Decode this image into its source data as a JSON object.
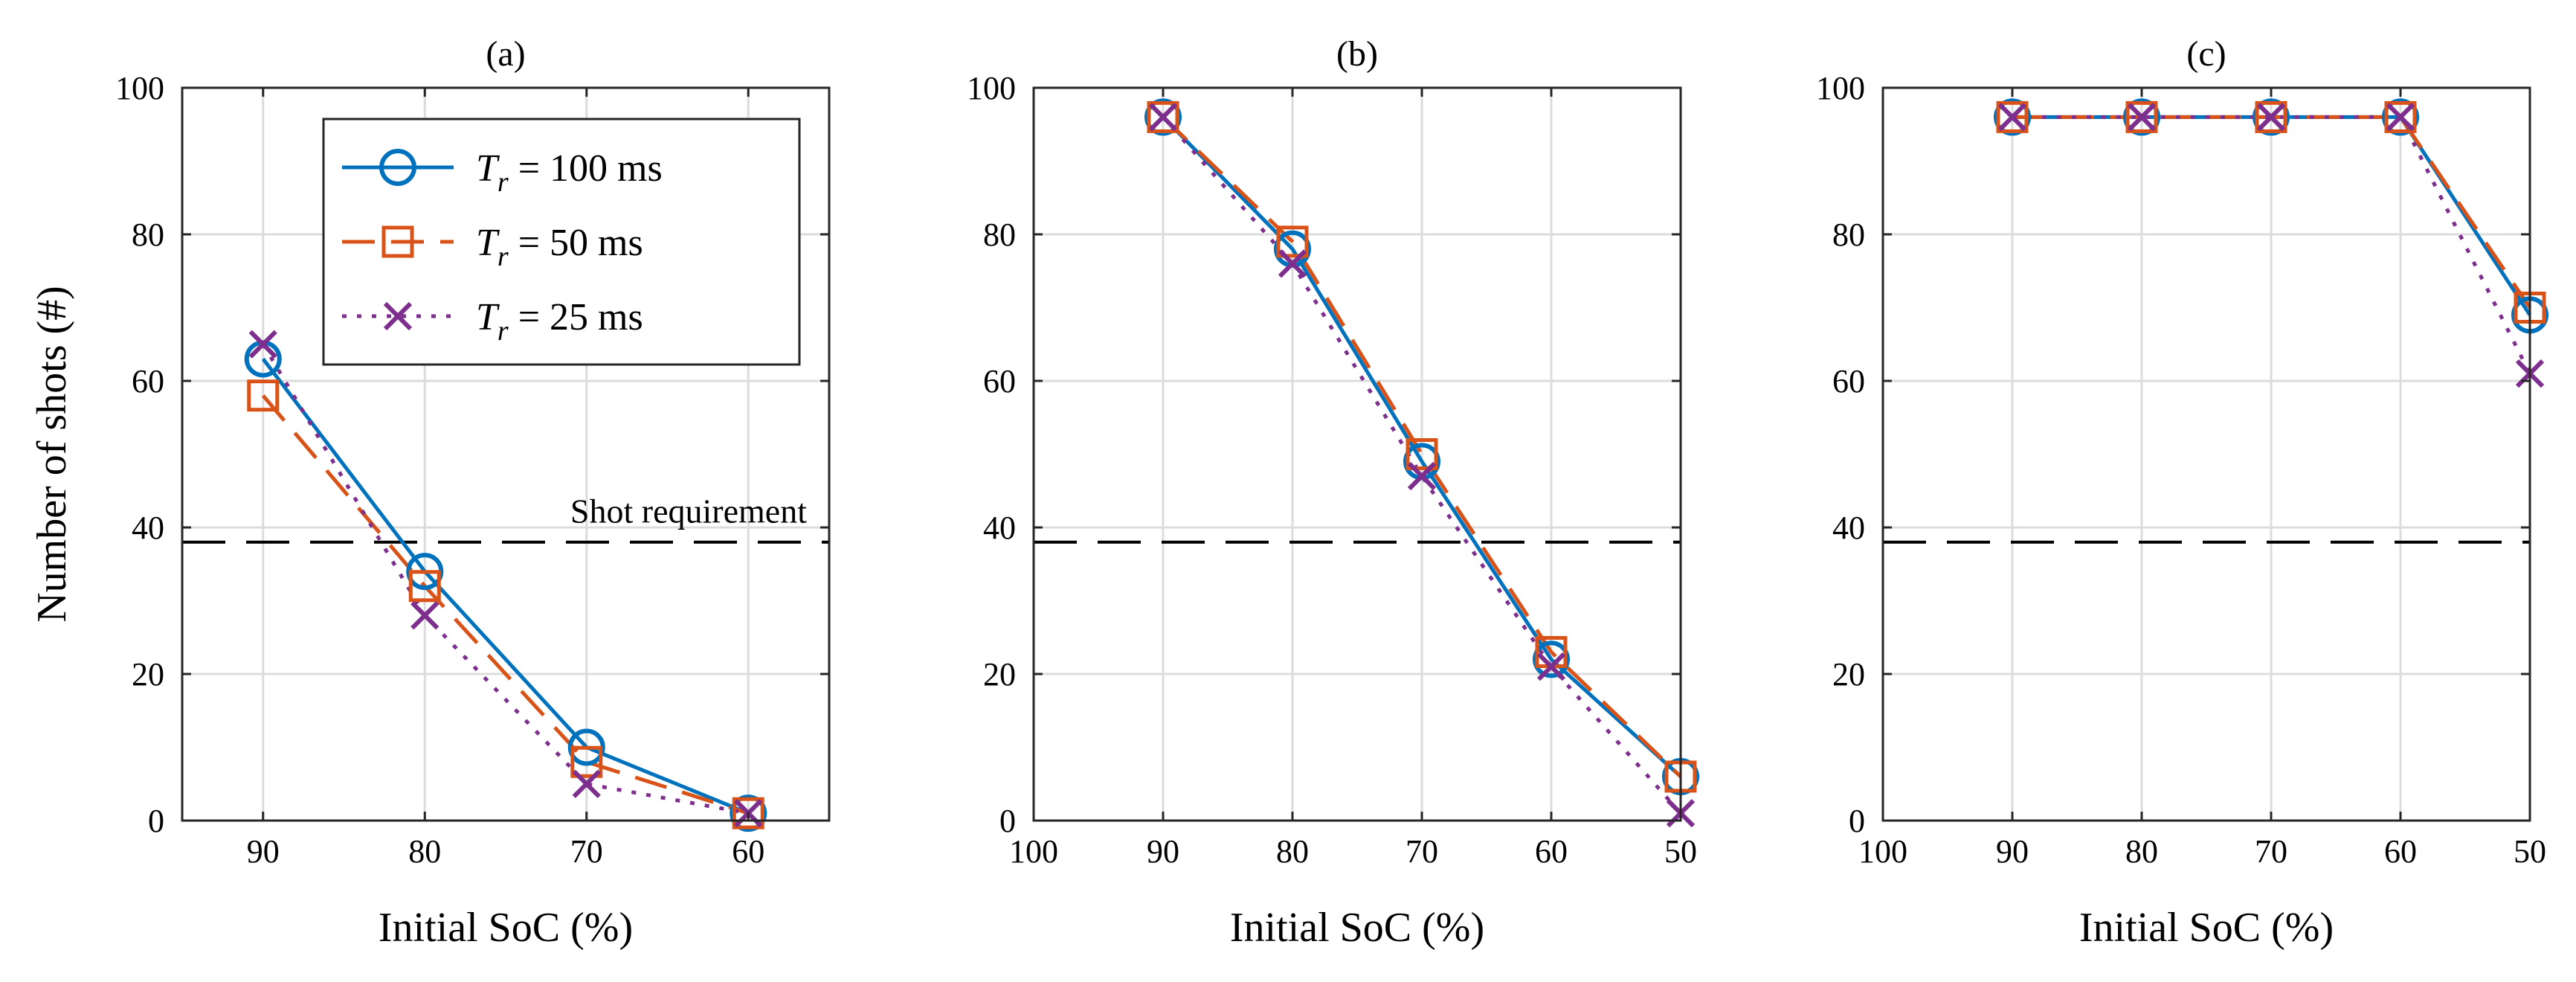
{
  "chart_data": [
    {
      "type": "line",
      "title": "(a)",
      "xlabel": "Initial SoC (%)",
      "ylabel": "Number of shots (#)",
      "x_reversed": true,
      "xlim": [
        95,
        55
      ],
      "ylim": [
        0,
        100
      ],
      "xticks": [
        90,
        80,
        70,
        60
      ],
      "yticks": [
        0,
        20,
        40,
        60,
        80,
        100
      ],
      "grid": true,
      "x": [
        90,
        80,
        70,
        60
      ],
      "series": [
        {
          "name": "Tr = 100 ms",
          "values": [
            63,
            34,
            10,
            1
          ]
        },
        {
          "name": "Tr = 50 ms",
          "values": [
            58,
            32,
            8,
            1
          ]
        },
        {
          "name": "Tr = 25 ms",
          "values": [
            65,
            28,
            5,
            1
          ]
        }
      ],
      "reference_line": {
        "y": 38,
        "label": "Shot requirement"
      },
      "legend": {
        "placement": "top-right",
        "entries": [
          {
            "var": "T",
            "sub": "r",
            "rest": " = 100 ms"
          },
          {
            "var": "T",
            "sub": "r",
            "rest": " = 50 ms"
          },
          {
            "var": "T",
            "sub": "r",
            "rest": " = 25 ms"
          }
        ]
      }
    },
    {
      "type": "line",
      "title": "(b)",
      "xlabel": "Initial SoC (%)",
      "ylabel": "",
      "x_reversed": true,
      "xlim": [
        100,
        50
      ],
      "ylim": [
        0,
        100
      ],
      "xticks": [
        100,
        90,
        80,
        70,
        60,
        50
      ],
      "yticks": [
        0,
        20,
        40,
        60,
        80,
        100
      ],
      "grid": true,
      "x": [
        90,
        80,
        70,
        60,
        50
      ],
      "series": [
        {
          "name": "Tr = 100 ms",
          "values": [
            96,
            78,
            49,
            22,
            6
          ]
        },
        {
          "name": "Tr = 50 ms",
          "values": [
            96,
            79,
            50,
            23,
            6
          ]
        },
        {
          "name": "Tr = 25 ms",
          "values": [
            96,
            76,
            47,
            21,
            1
          ]
        }
      ],
      "reference_line": {
        "y": 38
      }
    },
    {
      "type": "line",
      "title": "(c)",
      "xlabel": "Initial SoC (%)",
      "ylabel": "",
      "x_reversed": true,
      "xlim": [
        100,
        50
      ],
      "ylim": [
        0,
        100
      ],
      "xticks": [
        100,
        90,
        80,
        70,
        60,
        50
      ],
      "yticks": [
        0,
        20,
        40,
        60,
        80,
        100
      ],
      "grid": true,
      "x": [
        90,
        80,
        70,
        60,
        50
      ],
      "series": [
        {
          "name": "Tr = 100 ms",
          "values": [
            96,
            96,
            96,
            96,
            69
          ]
        },
        {
          "name": "Tr = 50 ms",
          "values": [
            96,
            96,
            96,
            96,
            70
          ]
        },
        {
          "name": "Tr = 25 ms",
          "values": [
            96,
            96,
            96,
            96,
            61
          ]
        }
      ],
      "reference_line": {
        "y": 38
      }
    }
  ],
  "colors": {
    "series": [
      "#0072BD",
      "#D95319",
      "#7E2F8E"
    ],
    "reference": "#000000",
    "grid": "#dcdcdc",
    "axis": "#262626"
  },
  "markers": [
    "circle",
    "square",
    "x"
  ],
  "line_styles": [
    "solid",
    "dashed",
    "dotted"
  ]
}
